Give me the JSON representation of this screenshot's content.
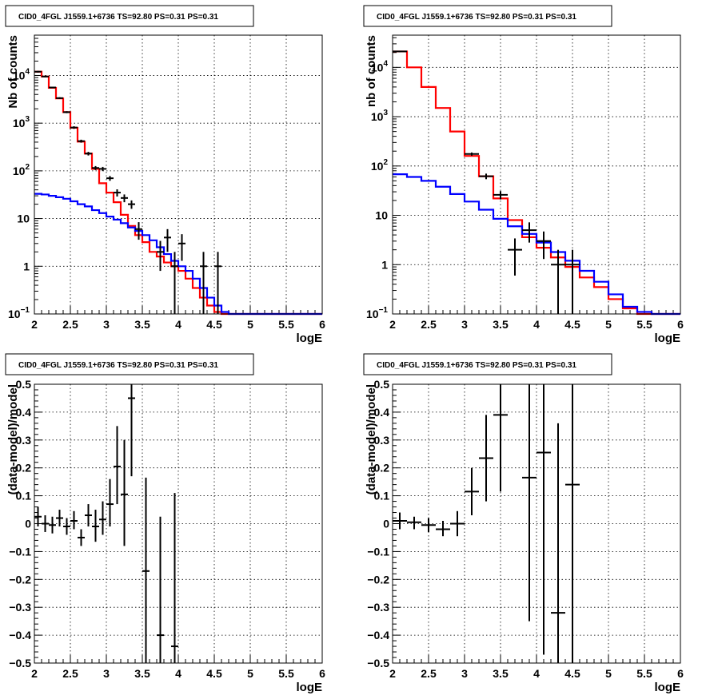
{
  "chart_data": [
    {
      "id": "tl",
      "type": "step-histogram",
      "title": "CID0_4FGL J1559.1+6736 TS=92.80 PS=0.31 PS=0.31",
      "xlabel": "logE",
      "ylabel": "Nb of counts",
      "xlim": [
        2,
        6
      ],
      "ylim": [
        0.1,
        70000
      ],
      "ylog": true,
      "grid": true,
      "xticks": [
        "2",
        "2.5",
        "3",
        "3.5",
        "4",
        "4.5",
        "5",
        "5.5",
        "6"
      ],
      "yticks": [
        {
          "v": 0.1,
          "label": "10",
          "sup": "−1"
        },
        {
          "v": 1,
          "label": "1",
          "sup": ""
        },
        {
          "v": 10,
          "label": "10",
          "sup": ""
        },
        {
          "v": 100,
          "label": "10",
          "sup": "2"
        },
        {
          "v": 1000,
          "label": "10",
          "sup": "3"
        },
        {
          "v": 10000,
          "label": "10",
          "sup": "4"
        }
      ],
      "series": [
        {
          "color": "#ff0000",
          "binwidth": 0.1,
          "x0": 2.0,
          "values": [
            12000,
            9500,
            5500,
            3300,
            1700,
            800,
            410,
            230,
            110,
            55,
            35,
            22,
            12,
            7,
            4.5,
            3.2,
            2.0,
            1.6,
            1.2,
            1.0,
            0.8,
            0.55,
            0.35,
            0.22,
            0.15,
            0.11,
            0.1,
            0.1,
            0.1,
            0.1,
            0.1,
            0.1,
            0.1,
            0.1,
            0.1,
            0.1,
            0.1,
            0.1,
            0.1,
            0.1
          ]
        },
        {
          "color": "#0000ff",
          "binwidth": 0.1,
          "x0": 2.0,
          "values": [
            33,
            32,
            30,
            28,
            26,
            23,
            20,
            18,
            15,
            13,
            11,
            9.5,
            8,
            6.5,
            5.5,
            4.5,
            3.5,
            2.5,
            1.8,
            1.3,
            1.0,
            0.8,
            0.55,
            0.35,
            0.22,
            0.15,
            0.11,
            0.1,
            0.1,
            0.1,
            0.1,
            0.1,
            0.1,
            0.1,
            0.1,
            0.1,
            0.1,
            0.1,
            0.1,
            0.1
          ]
        }
      ],
      "points": [
        {
          "x": 2.05,
          "y": 12000,
          "ylo": 11500,
          "yhi": 12500
        },
        {
          "x": 2.15,
          "y": 9500,
          "ylo": 9100,
          "yhi": 9900
        },
        {
          "x": 2.25,
          "y": 5600,
          "ylo": 5400,
          "yhi": 5800
        },
        {
          "x": 2.35,
          "y": 3350,
          "ylo": 3200,
          "yhi": 3500
        },
        {
          "x": 2.45,
          "y": 1700,
          "ylo": 1620,
          "yhi": 1780
        },
        {
          "x": 2.55,
          "y": 810,
          "ylo": 760,
          "yhi": 860
        },
        {
          "x": 2.65,
          "y": 420,
          "ylo": 390,
          "yhi": 450
        },
        {
          "x": 2.75,
          "y": 230,
          "ylo": 210,
          "yhi": 250
        },
        {
          "x": 2.85,
          "y": 115,
          "ylo": 104,
          "yhi": 126
        },
        {
          "x": 2.95,
          "y": 110,
          "ylo": 99,
          "yhi": 121
        },
        {
          "x": 3.05,
          "y": 70,
          "ylo": 62,
          "yhi": 78
        },
        {
          "x": 3.15,
          "y": 35,
          "ylo": 29,
          "yhi": 41
        },
        {
          "x": 3.25,
          "y": 27,
          "ylo": 22,
          "yhi": 32
        },
        {
          "x": 3.35,
          "y": 20,
          "ylo": 16,
          "yhi": 24
        },
        {
          "x": 3.45,
          "y": 6,
          "ylo": 3.6,
          "yhi": 8.4
        },
        {
          "x": 3.75,
          "y": 2,
          "ylo": 0.8,
          "yhi": 3.4
        },
        {
          "x": 3.85,
          "y": 4,
          "ylo": 2,
          "yhi": 6
        },
        {
          "x": 3.95,
          "y": 1,
          "ylo": 0.1,
          "yhi": 2
        },
        {
          "x": 4.05,
          "y": 3,
          "ylo": 1.3,
          "yhi": 4.7
        },
        {
          "x": 4.35,
          "y": 1,
          "ylo": 0.1,
          "yhi": 2
        },
        {
          "x": 4.55,
          "y": 1,
          "ylo": 0.1,
          "yhi": 2
        }
      ]
    },
    {
      "id": "tr",
      "type": "step-histogram",
      "title": "CID0_4FGL J1559.1+6736 TS=92.80 PS=0.31 PS=0.31",
      "xlabel": "logE",
      "ylabel": "nb of counts",
      "xlim": [
        2,
        6
      ],
      "ylim": [
        0.1,
        45000
      ],
      "ylog": true,
      "grid": true,
      "xticks": [
        "2",
        "2.5",
        "3",
        "3.5",
        "4",
        "4.5",
        "5",
        "5.5",
        "6"
      ],
      "yticks": [
        {
          "v": 0.1,
          "label": "10",
          "sup": "−1"
        },
        {
          "v": 1,
          "label": "1",
          "sup": ""
        },
        {
          "v": 10,
          "label": "10",
          "sup": ""
        },
        {
          "v": 100,
          "label": "10",
          "sup": "2"
        },
        {
          "v": 1000,
          "label": "10",
          "sup": "3"
        },
        {
          "v": 10000,
          "label": "10",
          "sup": "4"
        }
      ],
      "series": [
        {
          "color": "#ff0000",
          "binwidth": 0.2,
          "x0": 2.0,
          "values": [
            21000,
            10000,
            4000,
            1500,
            500,
            160,
            62,
            22,
            8,
            3.6,
            2.2,
            1.4,
            0.9,
            0.55,
            0.35,
            0.2,
            0.13,
            0.1,
            0.1,
            0.1
          ]
        },
        {
          "color": "#0000ff",
          "binwidth": 0.2,
          "x0": 2.0,
          "values": [
            68,
            60,
            50,
            38,
            27,
            19,
            13,
            8.5,
            6,
            4.2,
            2.8,
            1.8,
            1.2,
            0.75,
            0.45,
            0.25,
            0.14,
            0.11,
            0.1,
            0.1
          ]
        }
      ],
      "points": [
        {
          "x": 2.1,
          "y": 21000,
          "ylo": 20300,
          "yhi": 21700
        },
        {
          "x": 3.1,
          "y": 175,
          "ylo": 162,
          "yhi": 188
        },
        {
          "x": 3.3,
          "y": 62,
          "ylo": 54,
          "yhi": 70
        },
        {
          "x": 3.5,
          "y": 26,
          "ylo": 21,
          "yhi": 31
        },
        {
          "x": 3.7,
          "y": 2,
          "ylo": 0.6,
          "yhi": 3.4
        },
        {
          "x": 3.9,
          "y": 5,
          "ylo": 2.8,
          "yhi": 7.2
        },
        {
          "x": 4.1,
          "y": 3,
          "ylo": 1.3,
          "yhi": 4.7
        },
        {
          "x": 4.3,
          "y": 1,
          "ylo": 0.1,
          "yhi": 2
        },
        {
          "x": 4.5,
          "y": 1,
          "ylo": 0.1,
          "yhi": 2
        }
      ]
    },
    {
      "id": "bl",
      "type": "scatter",
      "title": "CID0_4FGL J1559.1+6736 TS=92.80 PS=0.31 PS=0.31",
      "xlabel": "logE",
      "ylabel": "(data-model)/model",
      "xlim": [
        2,
        6
      ],
      "ylim": [
        -0.5,
        0.5
      ],
      "ylog": false,
      "grid": true,
      "xticks": [
        "2",
        "2.5",
        "3",
        "3.5",
        "4",
        "4.5",
        "5",
        "5.5",
        "6"
      ],
      "yticks_lin": [
        "−0.5",
        "−0.4",
        "−0.3",
        "−0.2",
        "−0.1",
        "0",
        "0.1",
        "0.2",
        "0.3",
        "0.4",
        "0.5"
      ],
      "points": [
        {
          "x": 2.05,
          "y": 0.025,
          "ylo": -0.01,
          "yhi": 0.06
        },
        {
          "x": 2.15,
          "y": 0.0,
          "ylo": -0.03,
          "yhi": 0.03
        },
        {
          "x": 2.25,
          "y": -0.005,
          "ylo": -0.035,
          "yhi": 0.025
        },
        {
          "x": 2.35,
          "y": 0.02,
          "ylo": -0.01,
          "yhi": 0.05
        },
        {
          "x": 2.45,
          "y": -0.01,
          "ylo": -0.04,
          "yhi": 0.02
        },
        {
          "x": 2.55,
          "y": 0.01,
          "ylo": -0.02,
          "yhi": 0.045
        },
        {
          "x": 2.65,
          "y": -0.05,
          "ylo": -0.08,
          "yhi": -0.02
        },
        {
          "x": 2.75,
          "y": 0.03,
          "ylo": -0.01,
          "yhi": 0.07
        },
        {
          "x": 2.85,
          "y": -0.01,
          "ylo": -0.065,
          "yhi": 0.05
        },
        {
          "x": 2.95,
          "y": 0.015,
          "ylo": -0.04,
          "yhi": 0.08
        },
        {
          "x": 3.05,
          "y": 0.07,
          "ylo": -0.01,
          "yhi": 0.16
        },
        {
          "x": 3.15,
          "y": 0.205,
          "ylo": 0.07,
          "yhi": 0.35
        },
        {
          "x": 3.25,
          "y": 0.105,
          "ylo": -0.08,
          "yhi": 0.3
        },
        {
          "x": 3.35,
          "y": 0.45,
          "ylo": 0.17,
          "yhi": 0.5
        },
        {
          "x": 3.55,
          "y": -0.17,
          "ylo": -0.5,
          "yhi": 0.165
        },
        {
          "x": 3.75,
          "y": -0.4,
          "ylo": -0.5,
          "yhi": 0.025
        },
        {
          "x": 3.95,
          "y": -0.44,
          "ylo": -0.5,
          "yhi": 0.11
        }
      ]
    },
    {
      "id": "br",
      "type": "scatter",
      "title": "CID0_4FGL J1559.1+6736 TS=92.80 PS=0.31 PS=0.31",
      "xlabel": "logE",
      "ylabel": "(data-model)/model",
      "xlim": [
        2,
        6
      ],
      "ylim": [
        -0.5,
        0.5
      ],
      "ylog": false,
      "grid": true,
      "xticks": [
        "2",
        "2.5",
        "3",
        "3.5",
        "4",
        "4.5",
        "5",
        "5.5",
        "6"
      ],
      "yticks_lin": [
        "−0.5",
        "−0.4",
        "−0.3",
        "−0.2",
        "−0.1",
        "0",
        "0.1",
        "0.2",
        "0.3",
        "0.4",
        "0.5"
      ],
      "points": [
        {
          "x": 2.1,
          "y": 0.01,
          "ylo": -0.02,
          "yhi": 0.04
        },
        {
          "x": 2.3,
          "y": 0.005,
          "ylo": -0.02,
          "yhi": 0.025
        },
        {
          "x": 2.5,
          "y": -0.005,
          "ylo": -0.03,
          "yhi": 0.02
        },
        {
          "x": 2.7,
          "y": -0.02,
          "ylo": -0.045,
          "yhi": 0.01
        },
        {
          "x": 2.9,
          "y": 0.0,
          "ylo": -0.045,
          "yhi": 0.045
        },
        {
          "x": 3.1,
          "y": 0.115,
          "ylo": 0.03,
          "yhi": 0.2
        },
        {
          "x": 3.3,
          "y": 0.235,
          "ylo": 0.08,
          "yhi": 0.39
        },
        {
          "x": 3.5,
          "y": 0.39,
          "ylo": 0.115,
          "yhi": 0.5
        },
        {
          "x": 3.9,
          "y": 0.165,
          "ylo": -0.35,
          "yhi": 0.5
        },
        {
          "x": 4.1,
          "y": 0.255,
          "ylo": -0.47,
          "yhi": 0.5
        },
        {
          "x": 4.3,
          "y": -0.32,
          "ylo": -0.5,
          "yhi": 0.36
        },
        {
          "x": 4.5,
          "y": 0.14,
          "ylo": -0.5,
          "yhi": 0.5
        }
      ]
    }
  ]
}
